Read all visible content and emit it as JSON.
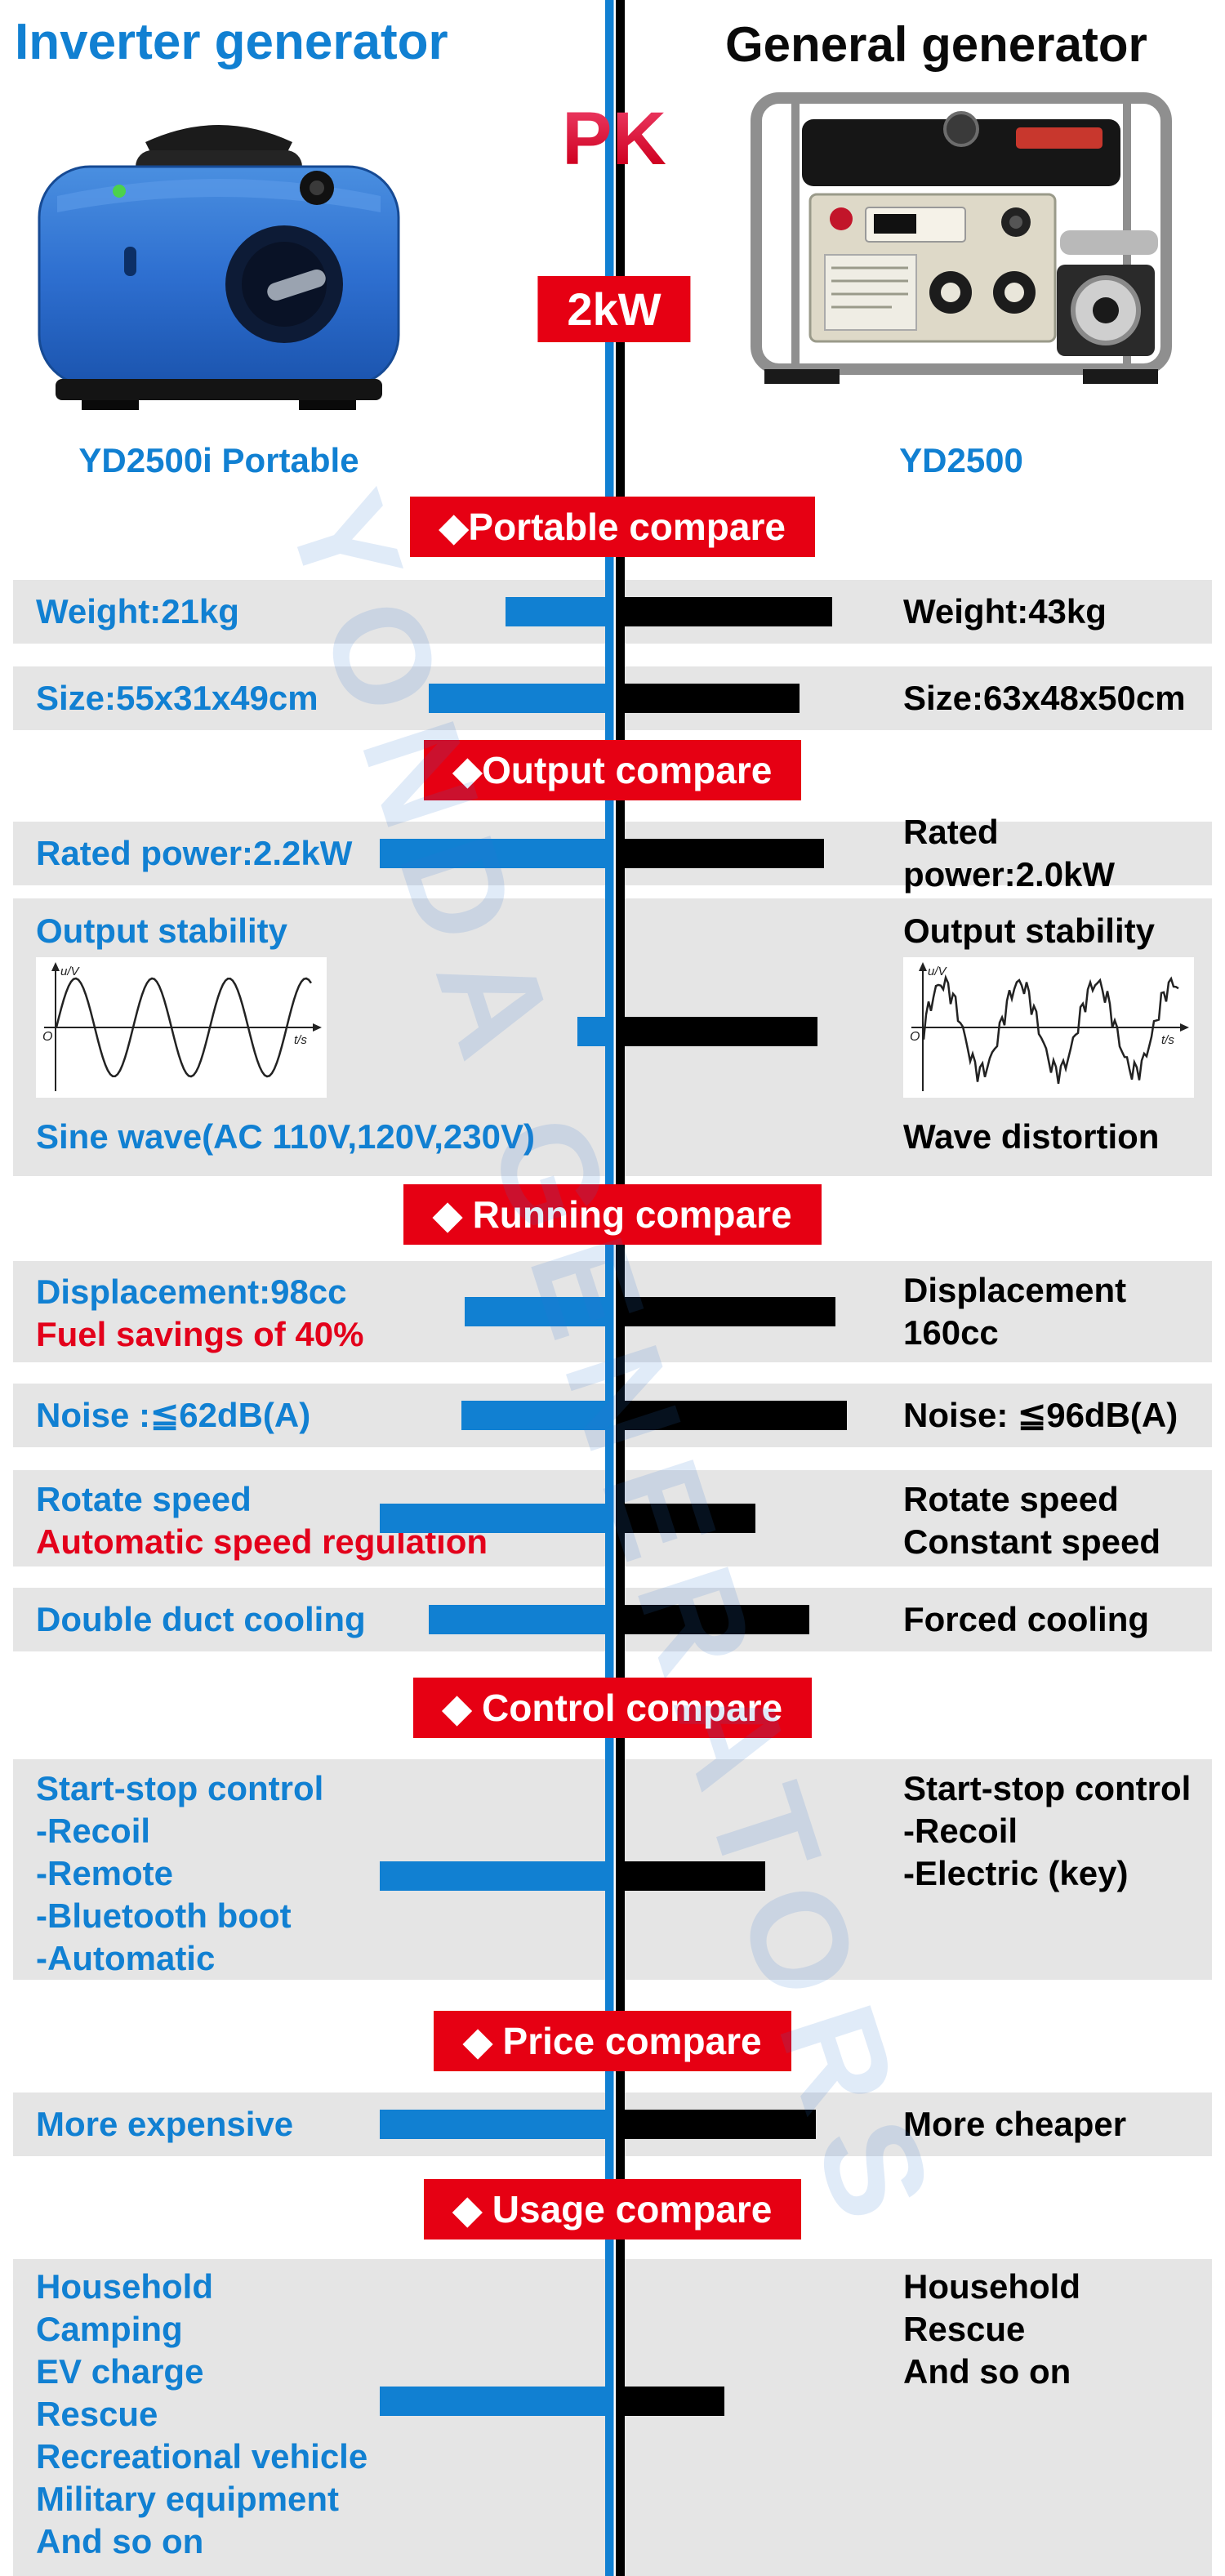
{
  "header": {
    "left_title": "Inverter generator",
    "right_title": "General generator",
    "pk": "PK",
    "power_badge": "2kW",
    "left_model": "YD2500i Portable",
    "right_model": "YD2500"
  },
  "watermark": "YONDA GENERATORS",
  "colors": {
    "blue": "#1180d2",
    "red": "#e60013",
    "band_gray": "#e5e5e5",
    "black": "#000000"
  },
  "sections": {
    "portable": {
      "title": "◆Portable compare"
    },
    "output": {
      "title": "◆Output compare"
    },
    "running": {
      "title": "◆ Running compare"
    },
    "control": {
      "title": "◆ Control compare"
    },
    "price": {
      "title": "◆ Price compare"
    },
    "usage": {
      "title": "◆ Usage compare"
    }
  },
  "rows": {
    "weight": {
      "left": "Weight:21kg",
      "right": "Weight:43kg"
    },
    "size": {
      "left": "Size:55x31x49cm",
      "right": "Size:63x48x50cm"
    },
    "rated_power": {
      "left": "Rated power:2.2kW",
      "right": "Rated power:2.0kW"
    },
    "stability": {
      "left_label": "Output stability",
      "right_label": "Output stability",
      "left_caption": "Sine wave(AC 110V,120V,230V)",
      "right_caption": "Wave distortion",
      "axis_y": "u/V",
      "axis_x": "t/s",
      "origin": "O"
    },
    "displacement": {
      "left_line1": "Displacement:98cc",
      "left_line2": "Fuel savings of 40%",
      "right": "Displacement 160cc"
    },
    "noise": {
      "left": "Noise :≦62dB(A)",
      "right": "Noise: ≦96dB(A)"
    },
    "rotate": {
      "left_line1": "Rotate speed",
      "left_line2": "Automatic speed regulation",
      "right_line1": "Rotate speed",
      "right_line2": "Constant speed"
    },
    "cooling": {
      "left": "Double duct cooling",
      "right": "Forced cooling"
    },
    "control": {
      "left_lines": [
        "Start-stop control",
        "-Recoil",
        "-Remote",
        "-Bluetooth boot",
        "-Automatic"
      ],
      "right_lines": [
        "Start-stop control",
        "-Recoil",
        "-Electric (key)"
      ]
    },
    "price": {
      "left": "More  expensive",
      "right": "More cheaper"
    },
    "usage": {
      "left_lines": [
        "Household",
        "Camping",
        "EV charge",
        "Rescue",
        "Recreational vehicle",
        "Military equipment",
        "And so on"
      ],
      "right_lines": [
        "Household",
        "Rescue",
        "And so on"
      ]
    }
  }
}
